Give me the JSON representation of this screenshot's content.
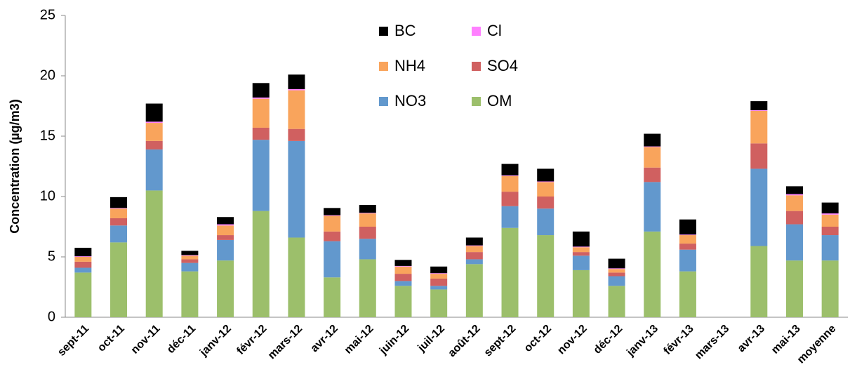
{
  "chart_data": {
    "type": "stacked_bar",
    "y_label": "Concentration (µg/m3)",
    "categories": [
      "sept-11",
      "oct-11",
      "nov-11",
      "déc-11",
      "janv-12",
      "févr-12",
      "mars-12",
      "avr-12",
      "mai-12",
      "juin-12",
      "juil-12",
      "août-12",
      "sept-12",
      "oct-12",
      "nov-12",
      "déc-12",
      "janv-13",
      "févr-13",
      "mars-13",
      "avr-13",
      "mai-13",
      "moyenne"
    ],
    "series": [
      {
        "name": "OM",
        "color": "#9cbf6b",
        "values": [
          3.7,
          6.2,
          10.5,
          3.8,
          4.7,
          8.8,
          6.6,
          3.3,
          4.8,
          2.6,
          2.3,
          4.4,
          7.4,
          6.8,
          3.9,
          2.6,
          7.1,
          3.8,
          null,
          5.9,
          4.7,
          4.7
        ]
      },
      {
        "name": "NO3",
        "color": "#6298cd",
        "values": [
          0.4,
          1.4,
          3.4,
          0.7,
          1.7,
          5.9,
          8.0,
          3.0,
          1.7,
          0.4,
          0.3,
          0.4,
          1.8,
          2.2,
          1.2,
          0.8,
          4.1,
          1.8,
          null,
          6.4,
          3.0,
          2.1
        ]
      },
      {
        "name": "SO4",
        "color": "#d06060",
        "values": [
          0.5,
          0.6,
          0.7,
          0.3,
          0.4,
          1.0,
          1.0,
          0.8,
          1.0,
          0.6,
          0.6,
          0.6,
          1.2,
          1.0,
          0.3,
          0.3,
          1.2,
          0.5,
          null,
          2.1,
          1.1,
          0.7
        ]
      },
      {
        "name": "NH4",
        "color": "#f9a45c",
        "values": [
          0.4,
          0.8,
          1.5,
          0.3,
          0.8,
          2.4,
          3.2,
          1.3,
          1.1,
          0.6,
          0.4,
          0.5,
          1.3,
          1.2,
          0.4,
          0.3,
          1.7,
          0.7,
          null,
          2.7,
          1.3,
          1.0
        ]
      },
      {
        "name": "Cl",
        "color": "#ff80ff",
        "values": [
          0.05,
          0.05,
          0.1,
          0.05,
          0.1,
          0.1,
          0.1,
          0.05,
          0.05,
          0.05,
          0.05,
          0.05,
          0.05,
          0.05,
          0.05,
          0.05,
          0.05,
          0.05,
          null,
          0.05,
          0.1,
          0.1
        ]
      },
      {
        "name": "BC",
        "color": "#000000",
        "values": [
          0.7,
          0.9,
          1.5,
          0.35,
          0.6,
          1.2,
          1.2,
          0.6,
          0.65,
          0.5,
          0.55,
          0.65,
          0.95,
          1.05,
          1.25,
          0.8,
          1.05,
          1.25,
          null,
          0.75,
          0.65,
          0.9
        ]
      }
    ],
    "ylim": [
      0,
      25
    ],
    "yticks": [
      0,
      5,
      10,
      15,
      20,
      25
    ],
    "grid": false,
    "legend": true
  }
}
